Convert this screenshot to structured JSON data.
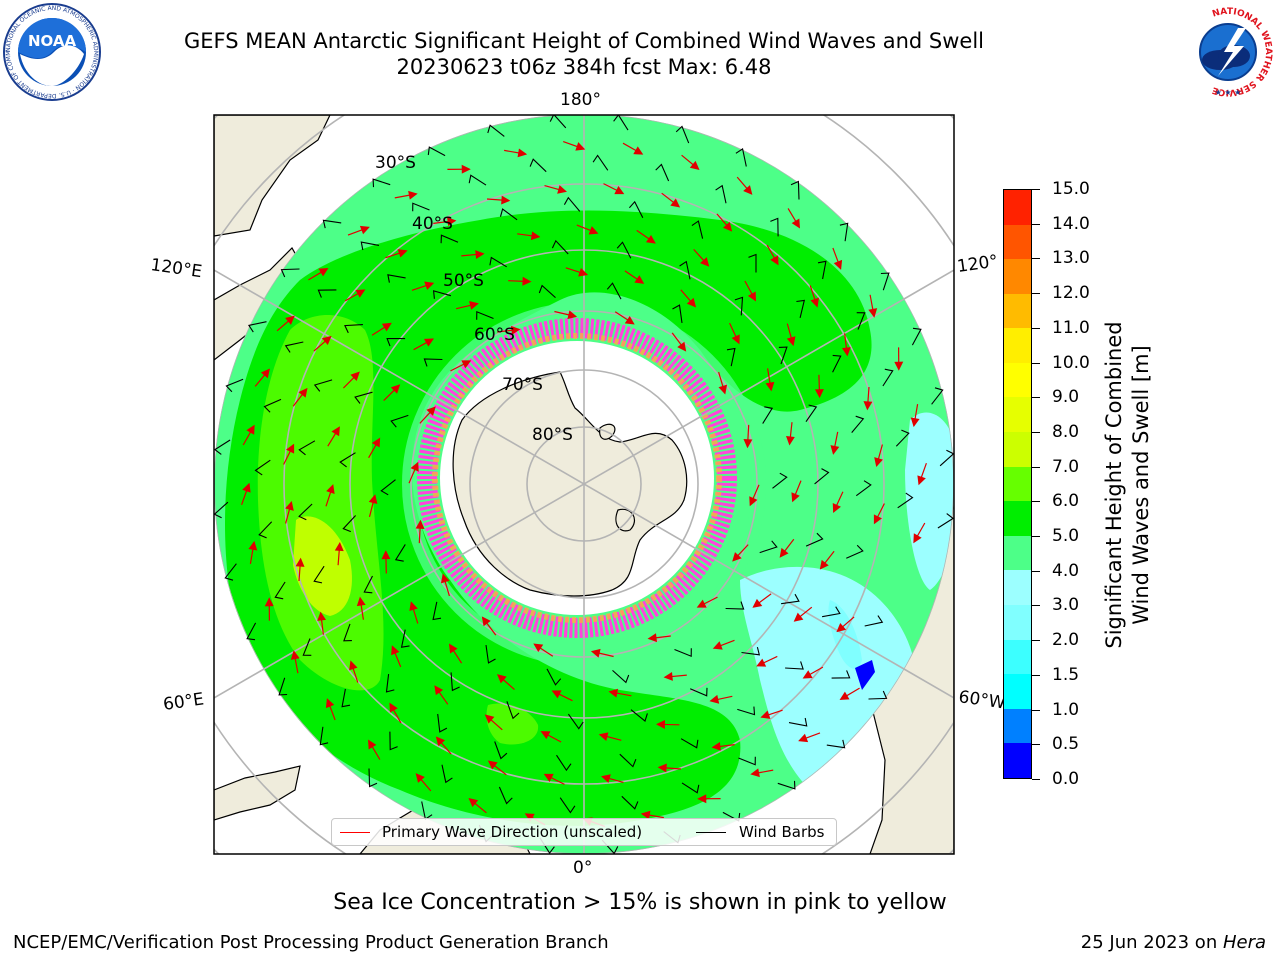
{
  "title": {
    "line1": "GEFS MEAN Antarctic Significant Height of Combined Wind Waves and Swell",
    "line2": "20230623 t06z 384h fcst   Max: 6.48"
  },
  "map": {
    "projection": "south-polar-stereographic",
    "longitude_labels": [
      "180°",
      "120°E",
      "120°",
      "60°E",
      "60°W",
      "0°"
    ],
    "latitude_labels": [
      "30°S",
      "40°S",
      "50°S",
      "60°S",
      "70°S",
      "80°S"
    ],
    "colors": {
      "land": "#efecdc",
      "ice_shelf": "#ffffff",
      "grid": "#b4b4b4",
      "coast": "#000000",
      "sea_ice_pink": "#ff44dd",
      "sea_ice_orange": "#ffaa44",
      "wave_arrow": "#ff0000",
      "wind_barb": "#000000"
    }
  },
  "legend": {
    "wave_label": "Primary Wave Direction (unscaled)",
    "barb_label": "Wind Barbs"
  },
  "colorbar": {
    "title_line1": "Significant Height of Combined",
    "title_line2": "Wind Waves and Swell [m]",
    "tick_labels": [
      "0.0",
      "0.5",
      "1.0",
      "1.5",
      "2.0",
      "3.0",
      "4.0",
      "5.0",
      "6.0",
      "7.0",
      "8.0",
      "9.0",
      "10.0",
      "11.0",
      "12.0",
      "13.0",
      "14.0",
      "15.0"
    ],
    "colors": [
      "#0000ff",
      "#0080ff",
      "#00ffff",
      "#3cffff",
      "#80ffff",
      "#9cffff",
      "#4dff88",
      "#00ee00",
      "#66ff00",
      "#ccff00",
      "#e6ff00",
      "#ffff00",
      "#ffee00",
      "#ffbb00",
      "#ff8800",
      "#ff5500",
      "#ff2200"
    ]
  },
  "note": "Sea Ice Concentration > 15% is shown in pink to yellow",
  "footer": {
    "left": "NCEP/EMC/Verification Post Processing Product Generation Branch",
    "right_prefix": "25 Jun 2023 on ",
    "right_host": "Hera"
  },
  "logos": {
    "noaa": "NOAA",
    "noaa_ring": "NATIONAL OCEANIC AND ATMOSPHERIC ADMINISTRATION · U.S. DEPARTMENT OF COMMERCE",
    "nws_ring": "NATIONAL WEATHER SERVICE"
  }
}
